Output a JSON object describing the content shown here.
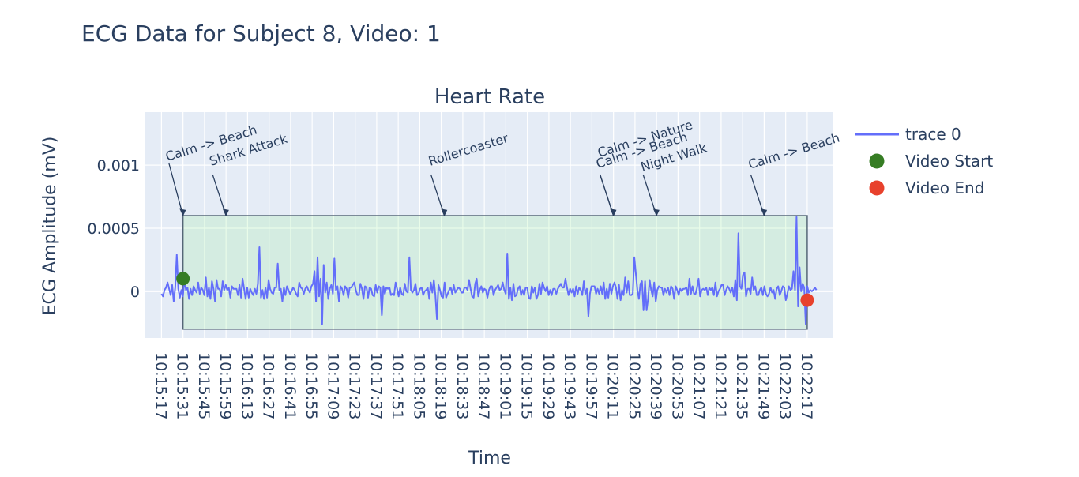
{
  "figure": {
    "title": "ECG Data for Subject 8, Video: 1"
  },
  "chart_data": {
    "type": "line",
    "title": "Heart Rate",
    "xlabel": "Time",
    "ylabel": "ECG Amplitude (mV)",
    "ylim": [
      -0.00037,
      0.00142
    ],
    "grid": true,
    "legend_position": "right",
    "x_ticks": [
      "10:15:17",
      "10:15:31",
      "10:15:45",
      "10:15:59",
      "10:16:13",
      "10:16:27",
      "10:16:41",
      "10:16:55",
      "10:17:09",
      "10:17:23",
      "10:17:37",
      "10:17:51",
      "10:18:05",
      "10:18:19",
      "10:18:33",
      "10:18:47",
      "10:19:01",
      "10:19:15",
      "10:19:29",
      "10:19:43",
      "10:19:57",
      "10:20:11",
      "10:20:25",
      "10:20:39",
      "10:20:53",
      "10:21:07",
      "10:21:21",
      "10:21:35",
      "10:21:49",
      "10:22:03",
      "10:22:17"
    ],
    "y_ticks": [
      {
        "value": 0,
        "label": "0"
      },
      {
        "value": 0.0005,
        "label": "0.0005"
      },
      {
        "value": 0.001,
        "label": "0.001"
      }
    ],
    "series": [
      {
        "name": "trace 0",
        "color": "#636efa",
        "start": "10:15:17",
        "end": "10:22:23",
        "values": [
          -2e-05,
          -4e-05,
          1e-05,
          3e-05,
          7e-05,
          2e-05,
          -3e-05,
          5e-05,
          -8e-05,
          3e-05,
          0.00029,
          2e-05,
          -5e-05,
          1e-05,
          -4e-05,
          9e-05,
          1e-05,
          3e-05,
          -6e-05,
          2e-05,
          -3e-05,
          4e-05,
          1e-05,
          -1e-05,
          7e-05,
          -2e-05,
          3e-05,
          1e-05,
          -3e-05,
          0.00011,
          -4e-05,
          3e-05,
          -6e-05,
          8e-05,
          2e-05,
          -8e-05,
          9e-05,
          2e-05,
          2e-05,
          -4e-05,
          8e-05,
          1e-05,
          5e-05,
          1e-05,
          3e-05,
          -5e-05,
          4e-05,
          2e-05,
          2e-05,
          2e-05,
          -3e-05,
          5e-05,
          -5e-05,
          0.0001,
          2e-05,
          -6e-05,
          3e-05,
          -5e-05,
          2e-05,
          -1e-05,
          -3e-05,
          2e-05,
          -2e-05,
          6e-05,
          0.00035,
          -5e-05,
          1e-05,
          -6e-05,
          3e-05,
          -5e-05,
          9e-05,
          2e-05,
          -1e-05,
          -2e-05,
          3e-05,
          3e-05,
          0.00022,
          1e-05,
          2e-05,
          -8e-05,
          3e-05,
          -3e-05,
          4e-05,
          1e-05,
          -2e-05,
          0.0,
          3e-05,
          1e-05,
          -2e-05,
          -4e-05,
          7e-05,
          3e-05,
          2e-05,
          -2e-05,
          2e-05,
          4e-05,
          1e-05,
          -1e-05,
          4e-05,
          6e-05,
          0.00016,
          -8e-05,
          0.00027,
          -4e-05,
          0.0001,
          -0.00026,
          0.00021,
          -1e-05,
          7e-05,
          -6e-05,
          2e-05,
          5e-05,
          -2e-05,
          0.00026,
          1e-05,
          4e-05,
          -8e-05,
          4e-05,
          2e-05,
          -3e-05,
          4e-05,
          2e-05,
          -5e-05,
          3e-05,
          3e-05,
          5e-05,
          7e-05,
          1e-05,
          -3e-05,
          -3e-05,
          6e-05,
          2e-05,
          -6e-05,
          4e-05,
          3e-05,
          -5e-05,
          3e-05,
          2e-05,
          -3e-05,
          -4e-05,
          5e-05,
          -1e-05,
          4e-05,
          3e-05,
          -0.00019,
          4e-05,
          -2e-05,
          3e-05,
          2e-05,
          3e-05,
          -3e-05,
          -2e-05,
          -3e-05,
          7e-05,
          2e-05,
          -4e-05,
          3e-05,
          -2e-05,
          -3e-05,
          6e-05,
          0.0,
          -1e-05,
          0.00027,
          1e-05,
          -1e-05,
          1e-05,
          6e-05,
          -3e-05,
          -2e-05,
          2e-05,
          3e-05,
          -3e-05,
          0.0,
          1e-05,
          3e-05,
          -6e-05,
          7e-05,
          -1e-05,
          9e-05,
          -3e-05,
          -0.00022,
          5e-05,
          1e-05,
          -4e-05,
          -5e-05,
          7e-05,
          -5e-05,
          -2e-05,
          1e-05,
          3e-05,
          -2e-05,
          5e-05,
          -1e-05,
          1e-05,
          3e-05,
          2e-05,
          -1e-05,
          -1e-05,
          3e-05,
          3e-05,
          1e-05,
          9e-05,
          2e-05,
          -4e-05,
          -5e-05,
          6e-05,
          0.0001,
          -4e-05,
          1e-05,
          4e-05,
          -1e-05,
          2e-05,
          1e-05,
          -5e-05,
          1e-05,
          4e-05,
          4e-05,
          -3e-05,
          1e-05,
          3e-05,
          5e-05,
          1e-05,
          2e-05,
          7e-05,
          1e-05,
          -2e-05,
          0.0003,
          -6e-05,
          3e-05,
          -7e-05,
          6e-05,
          -4e-05,
          -3e-05,
          2e-05,
          4e-05,
          -3e-05,
          1e-05,
          -3e-05,
          3e-05,
          3e-05,
          -5e-05,
          -6e-05,
          4e-05,
          -1e-05,
          3e-05,
          -6e-05,
          -3e-05,
          6e-05,
          -2e-05,
          7e-05,
          3e-05,
          0.0,
          4e-05,
          -3e-05,
          1e-05,
          -3e-05,
          2e-05,
          2e-05,
          -2e-05,
          2e-05,
          4e-05,
          6e-05,
          3e-05,
          3e-05,
          0.0001,
          3e-05,
          -3e-05,
          2e-05,
          -1e-05,
          2e-05,
          -4e-05,
          4e-05,
          -2e-05,
          3e-05,
          1e-05,
          -3e-05,
          8e-05,
          -2e-05,
          2e-05,
          -0.0002,
          -2e-05,
          4e-05,
          4e-05,
          4e-05,
          -2e-05,
          2e-05,
          -2e-05,
          4e-05,
          -2e-05,
          7e-05,
          -6e-05,
          2e-05,
          -5e-05,
          6e-05,
          -2e-05,
          4e-05,
          7e-05,
          3e-05,
          -6e-05,
          5e-05,
          -7e-05,
          1e-05,
          -3e-05,
          0.00011,
          -1e-05,
          8e-05,
          -3e-05,
          -3e-05,
          -2e-05,
          0.00027,
          0.00014,
          1e-05,
          -6e-05,
          6e-05,
          8e-05,
          -0.00015,
          8e-05,
          -0.00015,
          -6e-05,
          9e-05,
          1e-05,
          -4e-05,
          7e-05,
          -8e-05,
          1e-05,
          4e-05,
          3e-05,
          3e-05,
          -3e-05,
          2e-05,
          -1e-05,
          3e-05,
          -3e-05,
          4e-05,
          2e-05,
          -6e-05,
          4e-05,
          1e-05,
          -3e-05,
          2e-05,
          0.0,
          2e-05,
          2e-05,
          3e-05,
          -3e-05,
          0.0001,
          -2e-05,
          4e-05,
          -2e-05,
          -2e-05,
          3e-05,
          0.0001,
          -4e-05,
          1e-05,
          2e-05,
          1e-05,
          3e-05,
          -3e-05,
          3e-05,
          1e-05,
          3e-05,
          -3e-05,
          7e-05,
          -4e-05,
          0.0,
          2e-05,
          5e-05,
          5e-05,
          -3e-05,
          1e-05,
          4e-05,
          2e-05,
          -1e-05,
          3e-05,
          -4e-05,
          9e-05,
          -7e-05,
          0.00046,
          4e-05,
          2e-05,
          0.00013,
          0.00015,
          -4e-05,
          2e-05,
          2e-05,
          -2e-05,
          0.00011,
          1e-05,
          4e-05,
          -3e-05,
          -3e-05,
          1e-05,
          3e-05,
          -3e-05,
          4e-05,
          -2e-05,
          -4e-05,
          -2e-05,
          3e-05,
          -1e-05,
          1e-05,
          -6e-05,
          2e-05,
          4e-05,
          -3e-05,
          0.0,
          4e-05,
          3e-05,
          -7e-05,
          -2e-05,
          4e-05,
          1e-05,
          2e-05,
          0.00016,
          1e-05,
          0.00059,
          -0.00012,
          0.00019,
          0.0,
          6e-05,
          3e-05,
          -0.00026,
          4e-05,
          -1e-05,
          1e-05,
          0.0,
          1e-05,
          3e-05,
          1e-05
        ]
      },
      {
        "name": "Video Start",
        "type": "marker",
        "color": "#367d24",
        "x": "10:15:31",
        "y": 0.0001
      },
      {
        "name": "Video End",
        "type": "marker",
        "color": "#e8412c",
        "x": "10:22:17",
        "y": -7e-05
      }
    ],
    "highlight_region": {
      "x0": "10:15:31",
      "x1": "10:22:17",
      "y0": -0.0003,
      "y1": 0.0006,
      "fill": "rgba(144,238,144,0.2)",
      "border": "#556677"
    },
    "annotations": [
      {
        "text": "Calm -> Beach",
        "x": "10:15:31"
      },
      {
        "text": "Shark Attack",
        "x": "10:15:59"
      },
      {
        "text": "Rollercoaster",
        "x": "10:18:21"
      },
      {
        "text": "Calm -> Beach",
        "x": "10:20:11"
      },
      {
        "text": "Calm -> Nature",
        "x": "10:20:11"
      },
      {
        "text": "Night Walk",
        "x": "10:20:39"
      },
      {
        "text": "Calm -> Beach",
        "x": "10:21:49"
      }
    ]
  },
  "legend": {
    "items": [
      {
        "label": "trace 0",
        "symbol": "line",
        "color": "#636efa"
      },
      {
        "label": "Video Start",
        "symbol": "dot",
        "color": "#367d24"
      },
      {
        "label": "Video End",
        "symbol": "dot",
        "color": "#e8412c"
      }
    ]
  }
}
